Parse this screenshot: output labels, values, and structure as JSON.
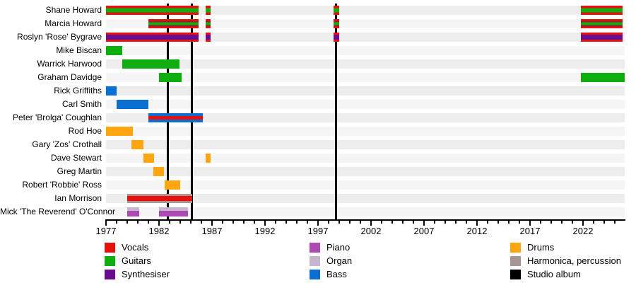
{
  "chart_data": {
    "type": "timeline",
    "description": "Band members timeline (gantt-style) with studio album markers",
    "x_axis": {
      "min_year": 1977,
      "max_year": 2026,
      "major_tick_labels": [
        "1977",
        "1982",
        "1987",
        "1992",
        "1997",
        "2002",
        "2007",
        "2012",
        "2017",
        "2022"
      ],
      "minor_tick_every_years": 1,
      "grid": false
    },
    "palette": {
      "vocals": "#e8100c",
      "guitars": "#0fae0f",
      "synthesiser": "#690c8f",
      "piano": "#ad49b5",
      "organ": "#c6b6cc",
      "bass": "#0a6fd2",
      "drums": "#fea50f",
      "harmonica": "#a89595",
      "album": "#000000",
      "vocals_dark_edge": "#9c1b30"
    },
    "patterns": {
      "vocals_guitars": [
        [
          "vocals",
          3.5
        ],
        [
          "guitars",
          6
        ],
        [
          "vocals",
          3.5
        ]
      ],
      "vocals_guitars_edged": [
        [
          "vocals",
          2.5
        ],
        [
          "vocals_dark_edge",
          2
        ],
        [
          "guitars",
          4
        ],
        [
          "vocals_dark_edge",
          2
        ],
        [
          "vocals",
          2.5
        ]
      ],
      "vocals_synth": [
        [
          "vocals",
          3
        ],
        [
          "synthesiser",
          7
        ],
        [
          "vocals",
          3
        ]
      ],
      "guitars_solid": [
        [
          "guitars",
          1
        ]
      ],
      "bass_solid": [
        [
          "bass",
          1
        ]
      ],
      "bass_vocals": [
        [
          "bass",
          4
        ],
        [
          "vocals",
          5
        ],
        [
          "bass",
          4
        ]
      ],
      "drums_solid": [
        [
          "drums",
          1
        ]
      ],
      "harmonica_vocals": [
        [
          "harmonica",
          3
        ],
        [
          "vocals",
          7
        ],
        [
          "harmonica",
          3
        ]
      ],
      "piano_organ": [
        [
          "organ",
          5
        ],
        [
          "piano",
          8
        ]
      ]
    },
    "members": [
      {
        "name": "Shane Howard",
        "roles": [
          "Vocals",
          "Guitars"
        ],
        "pattern": "vocals_guitars",
        "periods": [
          [
            1977.0,
            1985.75
          ],
          [
            1986.4,
            1986.85
          ],
          [
            1998.45,
            1999.0
          ],
          [
            2021.8,
            2025.75
          ]
        ]
      },
      {
        "name": "Marcia Howard",
        "roles": [
          "Vocals",
          "Guitars"
        ],
        "pattern": "vocals_guitars_edged",
        "periods": [
          [
            1981.0,
            1985.75
          ],
          [
            1986.4,
            1986.85
          ],
          [
            1998.45,
            1999.0
          ],
          [
            2021.8,
            2025.75
          ]
        ]
      },
      {
        "name": "Roslyn 'Rose' Bygrave",
        "roles": [
          "Vocals",
          "Synthesiser"
        ],
        "pattern": "vocals_synth",
        "periods": [
          [
            1977.0,
            1985.75
          ],
          [
            1986.4,
            1986.85
          ],
          [
            1998.45,
            1999.0
          ],
          [
            2021.8,
            2025.75
          ]
        ]
      },
      {
        "name": "Mike Biscan",
        "roles": [
          "Guitars"
        ],
        "pattern": "guitars_solid",
        "periods": [
          [
            1977.0,
            1978.5
          ]
        ]
      },
      {
        "name": "Warrick Harwood",
        "roles": [
          "Guitars"
        ],
        "pattern": "guitars_solid",
        "periods": [
          [
            1978.5,
            1983.9
          ]
        ]
      },
      {
        "name": "Graham Davidge",
        "roles": [
          "Guitars"
        ],
        "pattern": "guitars_solid",
        "periods": [
          [
            1982.0,
            1984.1
          ],
          [
            2021.8,
            2025.9
          ]
        ]
      },
      {
        "name": "Rick Griffiths",
        "roles": [
          "Bass"
        ],
        "pattern": "bass_solid",
        "periods": [
          [
            1977.0,
            1978.0
          ]
        ]
      },
      {
        "name": "Carl Smith",
        "roles": [
          "Bass"
        ],
        "pattern": "bass_solid",
        "periods": [
          [
            1978.0,
            1981.0
          ]
        ]
      },
      {
        "name": "Peter 'Brolga' Coughlan",
        "roles": [
          "Bass",
          "Vocals"
        ],
        "pattern": "bass_vocals",
        "periods": [
          [
            1981.0,
            1986.1
          ]
        ]
      },
      {
        "name": "Rod Hoe",
        "roles": [
          "Drums"
        ],
        "pattern": "drums_solid",
        "periods": [
          [
            1977.0,
            1979.5
          ]
        ]
      },
      {
        "name": "Gary 'Zos' Crothall",
        "roles": [
          "Drums"
        ],
        "pattern": "drums_solid",
        "periods": [
          [
            1979.4,
            1980.55
          ]
        ]
      },
      {
        "name": "Dave Stewart",
        "roles": [
          "Drums"
        ],
        "pattern": "drums_solid",
        "periods": [
          [
            1980.5,
            1981.55
          ],
          [
            1986.4,
            1986.85
          ]
        ]
      },
      {
        "name": "Greg Martin",
        "roles": [
          "Drums"
        ],
        "pattern": "drums_solid",
        "periods": [
          [
            1981.45,
            1982.5
          ]
        ]
      },
      {
        "name": "Robert 'Robbie' Ross",
        "roles": [
          "Drums"
        ],
        "pattern": "drums_solid",
        "periods": [
          [
            1982.5,
            1984.0
          ]
        ]
      },
      {
        "name": "Ian Morrison",
        "roles": [
          "Harmonica, percussion",
          "Vocals"
        ],
        "pattern": "harmonica_vocals",
        "periods": [
          [
            1979.0,
            1985.15
          ]
        ]
      },
      {
        "name": "Mick 'The Reverend' O'Connor",
        "roles": [
          "Piano",
          "Organ"
        ],
        "pattern": "piano_organ",
        "periods": [
          [
            1979.0,
            1980.1
          ],
          [
            1982.0,
            1984.7
          ]
        ]
      }
    ],
    "studio_album_years": [
      1982.8,
      1985.1,
      1998.7
    ],
    "row_band_colors": [
      "#ededed",
      "#f5f5f5"
    ],
    "legend_columns": [
      [
        {
          "label": "Vocals",
          "color_key": "vocals"
        },
        {
          "label": "Guitars",
          "color_key": "guitars"
        },
        {
          "label": "Synthesiser",
          "color_key": "synthesiser"
        }
      ],
      [
        {
          "label": "Piano",
          "color_key": "piano"
        },
        {
          "label": "Organ",
          "color_key": "organ"
        },
        {
          "label": "Bass",
          "color_key": "bass"
        }
      ],
      [
        {
          "label": "Drums",
          "color_key": "drums"
        },
        {
          "label": "Harmonica, percussion",
          "color_key": "harmonica"
        },
        {
          "label": "Studio album",
          "color_key": "album"
        }
      ]
    ],
    "legend_position": "bottom"
  }
}
